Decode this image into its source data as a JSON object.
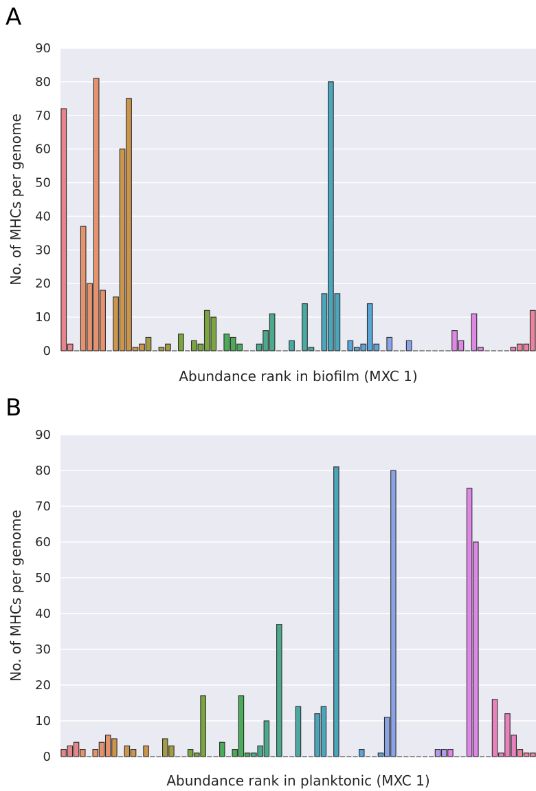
{
  "chart_data": [
    {
      "panel_label": "A",
      "type": "bar",
      "xlabel": "Abundance rank in biofilm (MXC 1)",
      "ylabel": "No. of MHCs per genome",
      "ylim": [
        0,
        90
      ],
      "yticks": [
        0,
        10,
        20,
        30,
        40,
        50,
        60,
        70,
        80,
        90
      ],
      "grid": true,
      "values": [
        72,
        2,
        0,
        37,
        20,
        81,
        18,
        0,
        16,
        60,
        75,
        1,
        2,
        4,
        0,
        1,
        2,
        0,
        5,
        0,
        3,
        2,
        12,
        10,
        0,
        5,
        4,
        2,
        0,
        0,
        2,
        6,
        11,
        0,
        0,
        3,
        0,
        14,
        1,
        0,
        17,
        80,
        17,
        0,
        3,
        1,
        2,
        14,
        2,
        0,
        4,
        0,
        0,
        3,
        0,
        0,
        0,
        0,
        0,
        0,
        6,
        3,
        0,
        11,
        1,
        0,
        0,
        0,
        0,
        1,
        2,
        2,
        12
      ]
    },
    {
      "panel_label": "B",
      "type": "bar",
      "xlabel": "Abundance rank in planktonic (MXC 1)",
      "ylabel": "No. of MHCs per genome",
      "ylim": [
        0,
        90
      ],
      "yticks": [
        0,
        10,
        20,
        30,
        40,
        50,
        60,
        70,
        80,
        90
      ],
      "grid": true,
      "values": [
        2,
        3,
        4,
        2,
        0,
        2,
        4,
        6,
        5,
        0,
        3,
        2,
        0,
        3,
        0,
        0,
        5,
        3,
        0,
        0,
        2,
        1,
        17,
        0,
        0,
        4,
        0,
        2,
        17,
        1,
        1,
        3,
        10,
        0,
        37,
        0,
        0,
        14,
        0,
        0,
        12,
        14,
        0,
        81,
        0,
        0,
        0,
        2,
        0,
        0,
        1,
        11,
        80,
        0,
        0,
        0,
        0,
        0,
        0,
        2,
        2,
        2,
        0,
        0,
        75,
        60,
        0,
        0,
        16,
        1,
        12,
        6,
        2,
        1,
        1
      ]
    }
  ]
}
